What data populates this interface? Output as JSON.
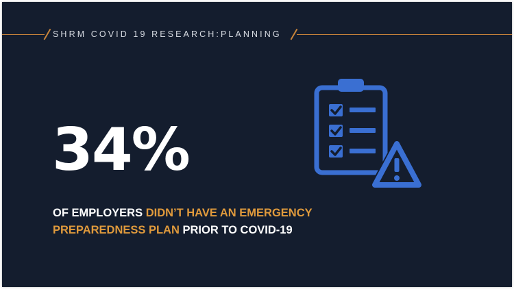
{
  "header": {
    "title": "SHRM COVID 19 RESEARCH:PLANNING"
  },
  "stat": {
    "value": "34%"
  },
  "caption": {
    "part1": "OF EMPLOYERS ",
    "part2": "DIDN’T HAVE AN EMERGENCY PREPAREDNESS PLAN",
    "part3": " PRIOR TO COVID-19"
  },
  "icons": {
    "main": "clipboard-checklist-icon",
    "warning": "warning-triangle-icon"
  },
  "colors": {
    "background": "#141d2e",
    "accent": "#e09a3c",
    "icon": "#3a6fd2",
    "text": "#ffffff"
  }
}
